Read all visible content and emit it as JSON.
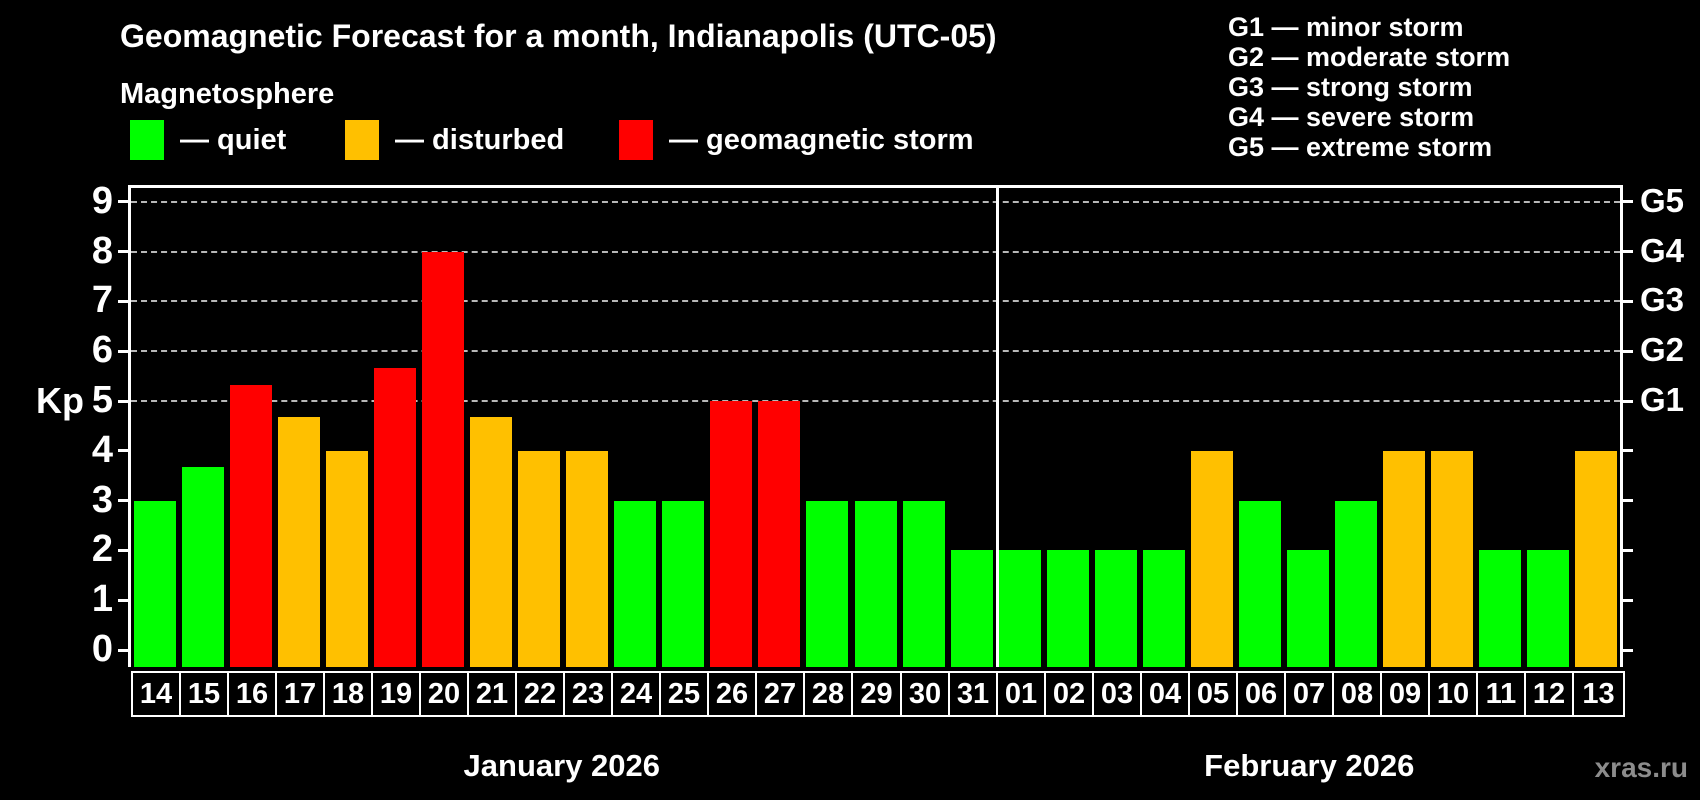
{
  "header": {
    "title": "Geomagnetic Forecast for a month, Indianapolis (UTC-05)",
    "legend_heading": "Magnetosphere",
    "legend_items": [
      {
        "key": "quiet",
        "label": "quiet",
        "color": "#00ff00"
      },
      {
        "key": "disturbed",
        "label": "disturbed",
        "color": "#ffc000"
      },
      {
        "key": "storm",
        "label": "geomagnetic storm",
        "color": "#ff0000"
      }
    ],
    "g_legend": [
      {
        "code": "G1",
        "desc": "minor storm"
      },
      {
        "code": "G2",
        "desc": "moderate storm"
      },
      {
        "code": "G3",
        "desc": "strong storm"
      },
      {
        "code": "G4",
        "desc": "severe storm"
      },
      {
        "code": "G5",
        "desc": "extreme storm"
      }
    ]
  },
  "watermark": "xras.ru",
  "chart_data": {
    "type": "bar",
    "ylabel": "Kp",
    "ylim": [
      0,
      9
    ],
    "y_ticks": [
      0,
      1,
      2,
      3,
      4,
      5,
      6,
      7,
      8,
      9
    ],
    "gridline_values": [
      5,
      6,
      7,
      8,
      9
    ],
    "grid": "dashed horizontal at Kp 5-9",
    "legend_position": "top-left and top-right",
    "right_axis_labels": [
      {
        "value": 5,
        "label": "G1"
      },
      {
        "value": 6,
        "label": "G2"
      },
      {
        "value": 7,
        "label": "G3"
      },
      {
        "value": 8,
        "label": "G4"
      },
      {
        "value": 9,
        "label": "G5"
      }
    ],
    "months": [
      {
        "label": "January 2026",
        "start_index": 0,
        "days": 18
      },
      {
        "label": "February 2026",
        "start_index": 18,
        "days": 13
      }
    ],
    "categories": [
      "14",
      "15",
      "16",
      "17",
      "18",
      "19",
      "20",
      "21",
      "22",
      "23",
      "24",
      "25",
      "26",
      "27",
      "28",
      "29",
      "30",
      "31",
      "01",
      "02",
      "03",
      "04",
      "05",
      "06",
      "07",
      "08",
      "09",
      "10",
      "11",
      "12",
      "13"
    ],
    "values": [
      3,
      3.67,
      5.33,
      4.67,
      4,
      5.67,
      8,
      4.67,
      4,
      4,
      3,
      3,
      5,
      5,
      3,
      3,
      3,
      2,
      2,
      2,
      2,
      2,
      4,
      3,
      2,
      3,
      4,
      4,
      2,
      2,
      4
    ],
    "statuses": [
      "quiet",
      "quiet",
      "storm",
      "disturbed",
      "disturbed",
      "storm",
      "storm",
      "disturbed",
      "disturbed",
      "disturbed",
      "quiet",
      "quiet",
      "storm",
      "storm",
      "quiet",
      "quiet",
      "quiet",
      "quiet",
      "quiet",
      "quiet",
      "quiet",
      "quiet",
      "disturbed",
      "quiet",
      "quiet",
      "quiet",
      "disturbed",
      "disturbed",
      "quiet",
      "quiet",
      "disturbed"
    ],
    "status_colors": {
      "quiet": "#00ff00",
      "disturbed": "#ffc000",
      "storm": "#ff0000"
    }
  }
}
